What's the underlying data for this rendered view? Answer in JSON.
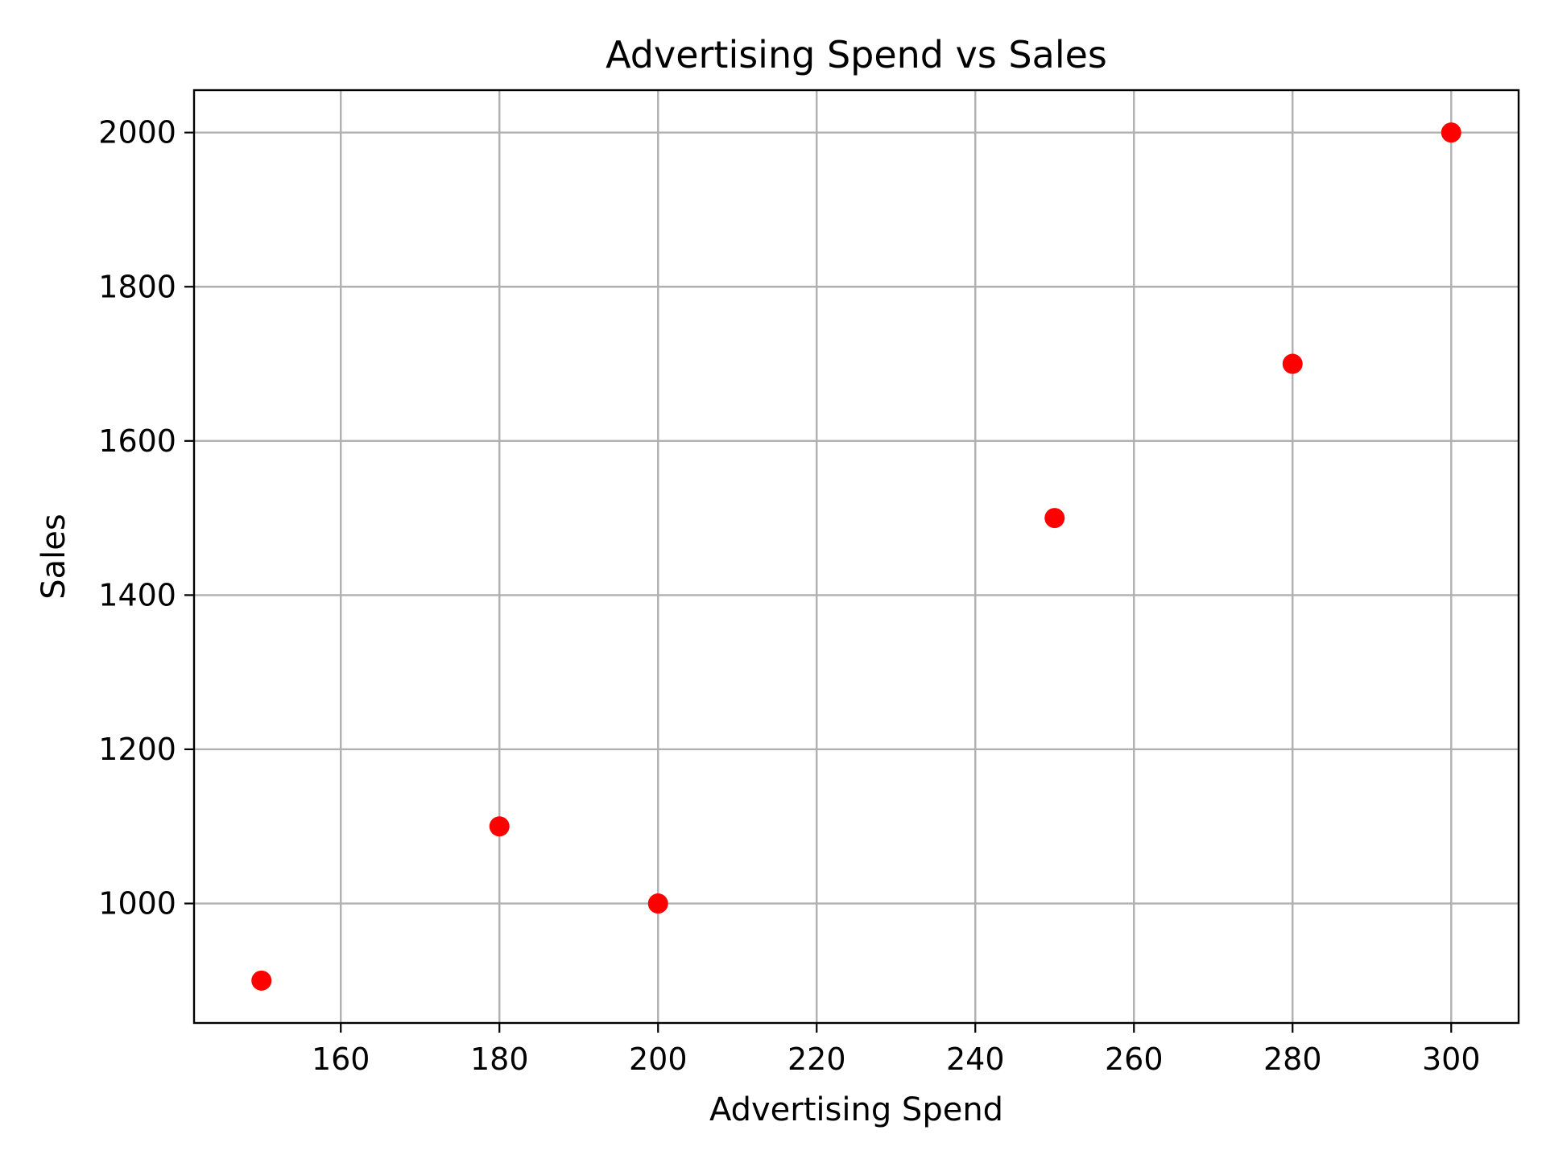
{
  "chart_data": {
    "type": "scatter",
    "title": "Advertising Spend vs Sales",
    "xlabel": "Advertising Spend",
    "ylabel": "Sales",
    "x": [
      150,
      180,
      200,
      250,
      280,
      300
    ],
    "y": [
      900,
      1100,
      1000,
      1500,
      1700,
      2000
    ],
    "xlim": [
      141.5,
      308.5
    ],
    "ylim": [
      845,
      2055
    ],
    "xticks": [
      160,
      180,
      200,
      220,
      240,
      260,
      280,
      300
    ],
    "yticks": [
      1000,
      1200,
      1400,
      1600,
      1800,
      2000
    ],
    "grid": true,
    "marker_color": "#ff0000"
  }
}
